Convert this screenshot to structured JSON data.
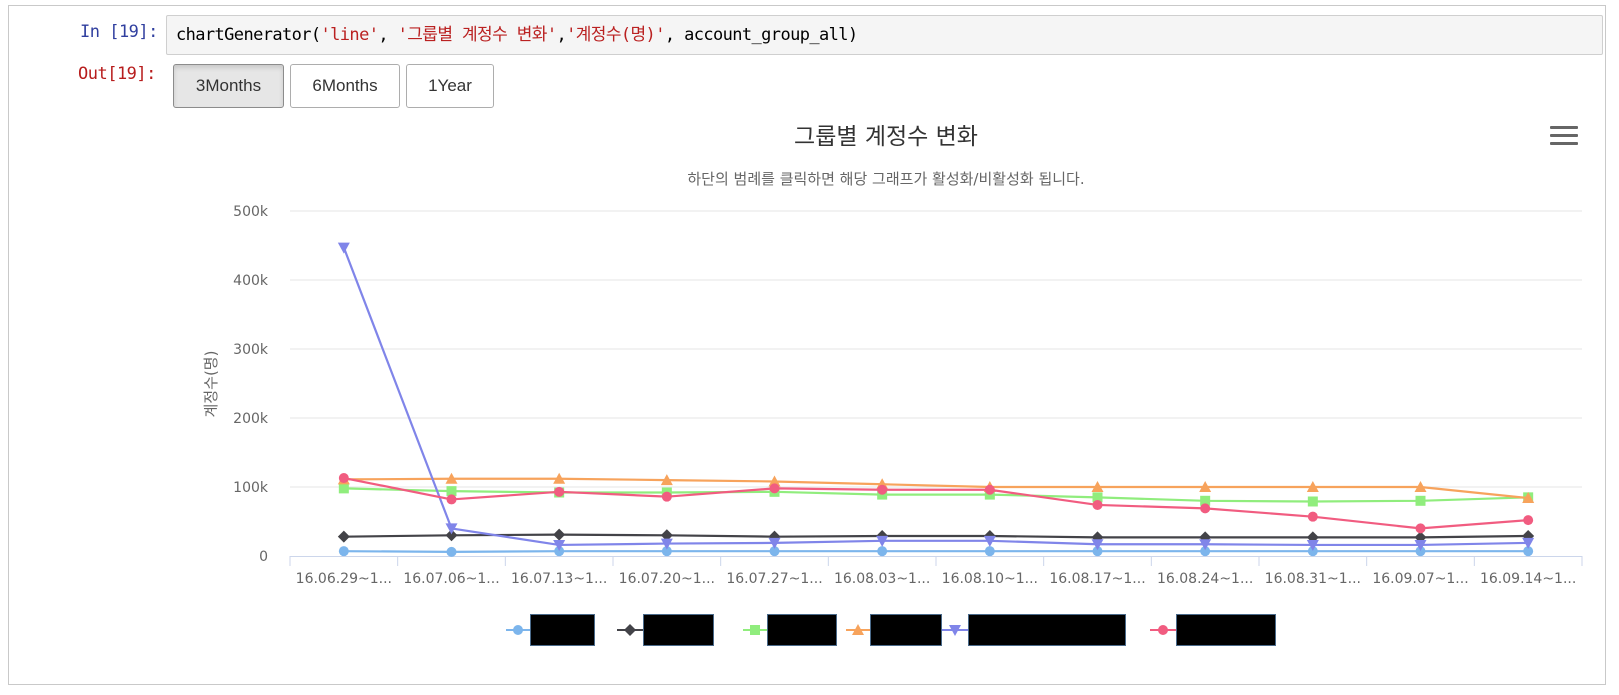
{
  "cell": {
    "in_prompt": "In [19]:",
    "out_prompt": "Out[19]:",
    "code_prefix": "chartGenerator(",
    "code_arg1": "'line'",
    "code_sep1": ", ",
    "code_arg2": "'그룹별 계정수 변화'",
    "code_sep2": ",",
    "code_arg3": "'계정수(명)'",
    "code_suffix": ", account_group_all)"
  },
  "range_buttons": [
    {
      "label": "3Months",
      "active": true
    },
    {
      "label": "6Months",
      "active": false
    },
    {
      "label": "1Year",
      "active": false
    }
  ],
  "colors": {
    "series": [
      "#7cb5ec",
      "#434348",
      "#90ed7d",
      "#f7a35c",
      "#8085e9",
      "#f15c80"
    ],
    "grid": "#e6e6e6",
    "axis_text": "#666666",
    "title_text": "#333333"
  },
  "chart_data": {
    "type": "line",
    "title": "그룹별 계정수 변화",
    "subtitle": "하단의 범례를 클릭하면 해당 그래프가 활성화/비활성화 됩니다.",
    "ylabel": "계정수(명)",
    "xlabel": "",
    "ylim": [
      0,
      500000
    ],
    "yticks": [
      0,
      100000,
      200000,
      300000,
      400000,
      500000
    ],
    "ytick_labels": [
      "0",
      "100k",
      "200k",
      "300k",
      "400k",
      "500k"
    ],
    "categories": [
      "16.06.29~1...",
      "16.07.06~1...",
      "16.07.13~1...",
      "16.07.20~1...",
      "16.07.27~1...",
      "16.08.03~1...",
      "16.08.10~1...",
      "16.08.17~1...",
      "16.08.24~1...",
      "16.08.31~1...",
      "16.09.07~1...",
      "16.09.14~1..."
    ],
    "grid": true,
    "legend_position": "bottom",
    "series": [
      {
        "marker": "circle",
        "values": [
          7000,
          6000,
          7000,
          7000,
          7000,
          7000,
          7000,
          7000,
          7000,
          7000,
          7000,
          7000
        ]
      },
      {
        "marker": "diamond",
        "values": [
          28000,
          30000,
          31000,
          30000,
          28000,
          29000,
          29000,
          27000,
          27000,
          27000,
          27000,
          29000
        ]
      },
      {
        "marker": "square",
        "values": [
          98000,
          94000,
          92000,
          92000,
          93000,
          89000,
          89000,
          85000,
          80000,
          79000,
          80000,
          85000
        ]
      },
      {
        "marker": "triangle",
        "values": [
          111000,
          112000,
          112000,
          110000,
          108000,
          104000,
          100000,
          100000,
          100000,
          100000,
          100000,
          84000
        ]
      },
      {
        "marker": "triangle-down",
        "values": [
          447000,
          40000,
          16000,
          18000,
          19000,
          22000,
          22000,
          17000,
          17000,
          16000,
          16000,
          19000
        ]
      },
      {
        "marker": "circle",
        "values": [
          113000,
          82000,
          93000,
          86000,
          98000,
          96000,
          96000,
          74000,
          69000,
          57000,
          40000,
          52000
        ]
      }
    ]
  }
}
